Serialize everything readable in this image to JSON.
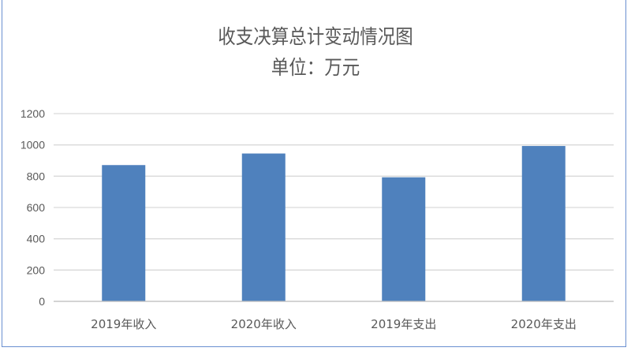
{
  "chart_data": {
    "type": "bar",
    "title": "收支决算总计变动情况图",
    "subtitle": "单位：万元",
    "categories": [
      "2019年收入",
      "2020年收入",
      "2019年支出",
      "2020年支出"
    ],
    "values": [
      871,
      945,
      793,
      993
    ],
    "ylim": [
      0,
      1200
    ],
    "yticks": [
      0,
      200,
      400,
      600,
      800,
      1000,
      1200
    ],
    "grid": true,
    "legend": "none",
    "colors": {
      "bar": "#4f81bd",
      "grid": "#d9d9d9",
      "text": "#595959"
    }
  }
}
